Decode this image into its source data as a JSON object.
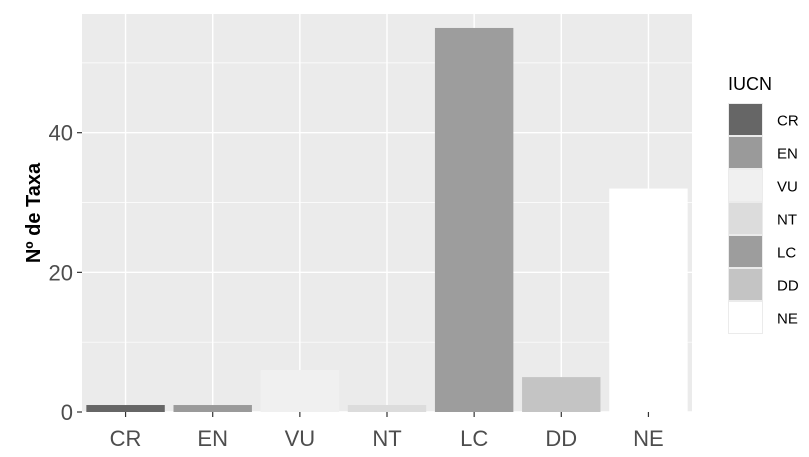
{
  "chart_data": {
    "type": "bar",
    "categories": [
      "CR",
      "EN",
      "VU",
      "NT",
      "LC",
      "DD",
      "NE"
    ],
    "values": [
      1,
      1,
      6,
      1,
      55,
      5,
      32
    ],
    "colors": [
      "#666666",
      "#9a9a9a",
      "#f0f0f0",
      "#dcdcdc",
      "#9d9d9d",
      "#c4c4c4",
      "#ffffff"
    ],
    "title": "",
    "xlabel": "",
    "ylabel": "Nº de Taxa",
    "ylim": [
      0,
      57
    ],
    "yticks": [
      0,
      20,
      40
    ],
    "grid": true,
    "panel_background": "#ebebeb",
    "grid_color": "#ffffff",
    "legend": {
      "title": "IUCN",
      "placement": "right",
      "items": [
        "CR",
        "EN",
        "VU",
        "NT",
        "LC",
        "DD",
        "NE"
      ]
    }
  }
}
